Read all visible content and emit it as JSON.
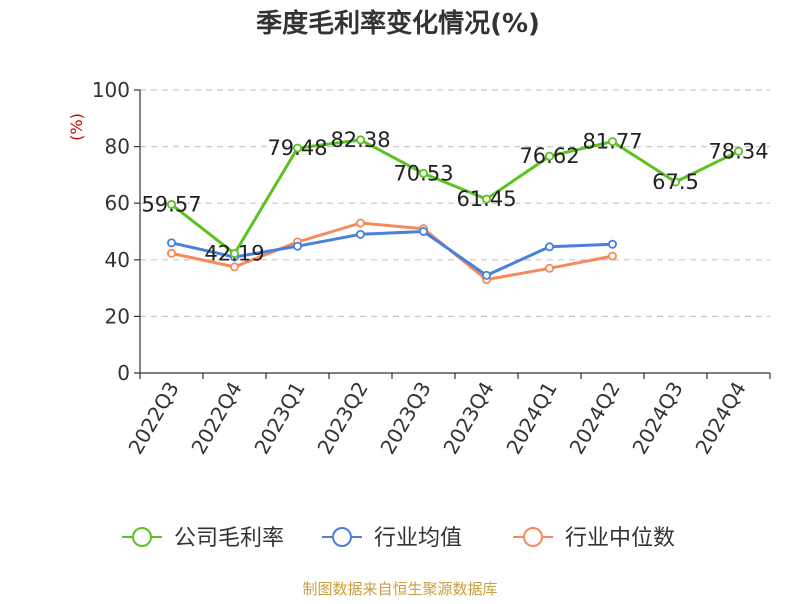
{
  "chart_data": {
    "type": "line",
    "title": "季度毛利率变化情况(%)",
    "ylabel": "(%)",
    "xlabel": "",
    "ylim": [
      0,
      100
    ],
    "yticks": [
      0,
      20,
      40,
      60,
      80,
      100
    ],
    "grid": "horizontal-dashed",
    "legend_position": "bottom",
    "categories": [
      "2022Q3",
      "2022Q4",
      "2023Q1",
      "2023Q2",
      "2023Q3",
      "2023Q4",
      "2024Q1",
      "2024Q2",
      "2024Q3",
      "2024Q4"
    ],
    "series": [
      {
        "name": "公司毛利率",
        "color": "#5bc21f",
        "values": [
          59.57,
          42.19,
          79.48,
          82.38,
          70.53,
          61.45,
          76.62,
          81.77,
          67.5,
          78.34
        ],
        "labels": [
          "59.57",
          "42.19",
          "79.48",
          "82.38",
          "70.53",
          "61.45",
          "76.62",
          "81.77",
          "67.5",
          "78.34"
        ]
      },
      {
        "name": "行业均值",
        "color": "#4a7fdc",
        "values": [
          46.0,
          41.0,
          44.8,
          49.0,
          50.0,
          34.5,
          44.6,
          45.5,
          null,
          null
        ]
      },
      {
        "name": "行业中位数",
        "color": "#f58a5a",
        "values": [
          42.3,
          37.5,
          46.3,
          53.0,
          51.0,
          33.0,
          37.0,
          41.3,
          null,
          null
        ]
      }
    ]
  },
  "source": "制图数据来自恒生聚源数据库"
}
